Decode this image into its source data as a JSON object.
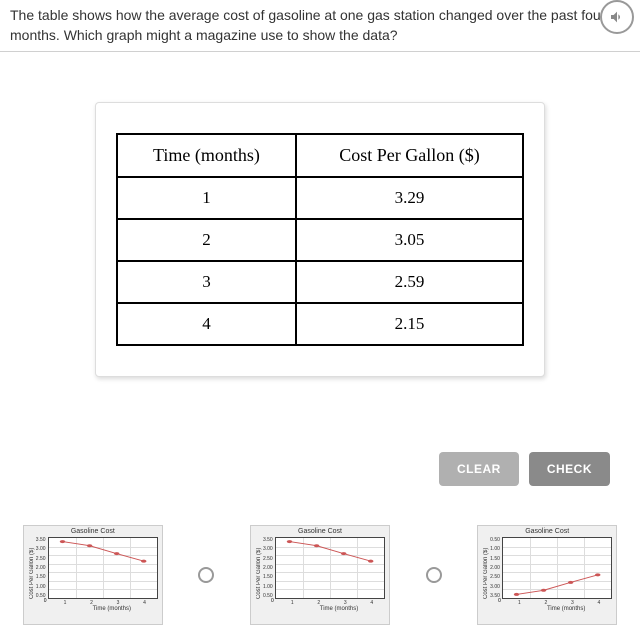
{
  "question": {
    "text": "The table shows how the average cost of gasoline at one gas station changed over the past four months. Which graph might a magazine use to show the data?"
  },
  "table": {
    "headers": [
      "Time (months)",
      "Cost Per Gallon ($)"
    ],
    "rows": [
      [
        "1",
        "3.29"
      ],
      [
        "2",
        "3.05"
      ],
      [
        "3",
        "2.59"
      ],
      [
        "4",
        "2.15"
      ]
    ]
  },
  "buttons": {
    "clear": "CLEAR",
    "check": "CHECK"
  },
  "charts": {
    "common": {
      "title": "Gasoline Cost",
      "ylabel": "Cost Per Gallon ($)",
      "xlabel": "Time (months)",
      "xticks": [
        "1",
        "2",
        "3",
        "4"
      ],
      "zero": "0",
      "grid_color": "#dddddd",
      "line_color": "#cc5555",
      "point_color": "#cc5555",
      "bg": "#f0f0f0",
      "plot_bg": "#ffffff"
    },
    "a": {
      "yticks": [
        "3.50",
        "3.00",
        "2.50",
        "2.00",
        "1.50",
        "1.00",
        "0.50"
      ],
      "ylim": [
        0,
        3.5
      ],
      "points": [
        [
          1,
          3.29
        ],
        [
          2,
          3.05
        ],
        [
          3,
          2.59
        ],
        [
          4,
          2.15
        ]
      ]
    },
    "b": {
      "yticks": [
        "3.50",
        "3.00",
        "2.50",
        "2.00",
        "1.50",
        "1.00",
        "0.50"
      ],
      "ylim": [
        0,
        3.5
      ],
      "points": [
        [
          1,
          3.29
        ],
        [
          2,
          3.05
        ],
        [
          3,
          2.59
        ],
        [
          4,
          2.15
        ]
      ]
    },
    "c": {
      "yticks": [
        "0.50",
        "1.00",
        "1.50",
        "2.00",
        "2.50",
        "3.00",
        "3.50"
      ],
      "ylim": [
        0,
        3.5
      ],
      "inverted": true,
      "points": [
        [
          1,
          3.29
        ],
        [
          2,
          3.05
        ],
        [
          3,
          2.59
        ],
        [
          4,
          2.15
        ]
      ]
    }
  }
}
